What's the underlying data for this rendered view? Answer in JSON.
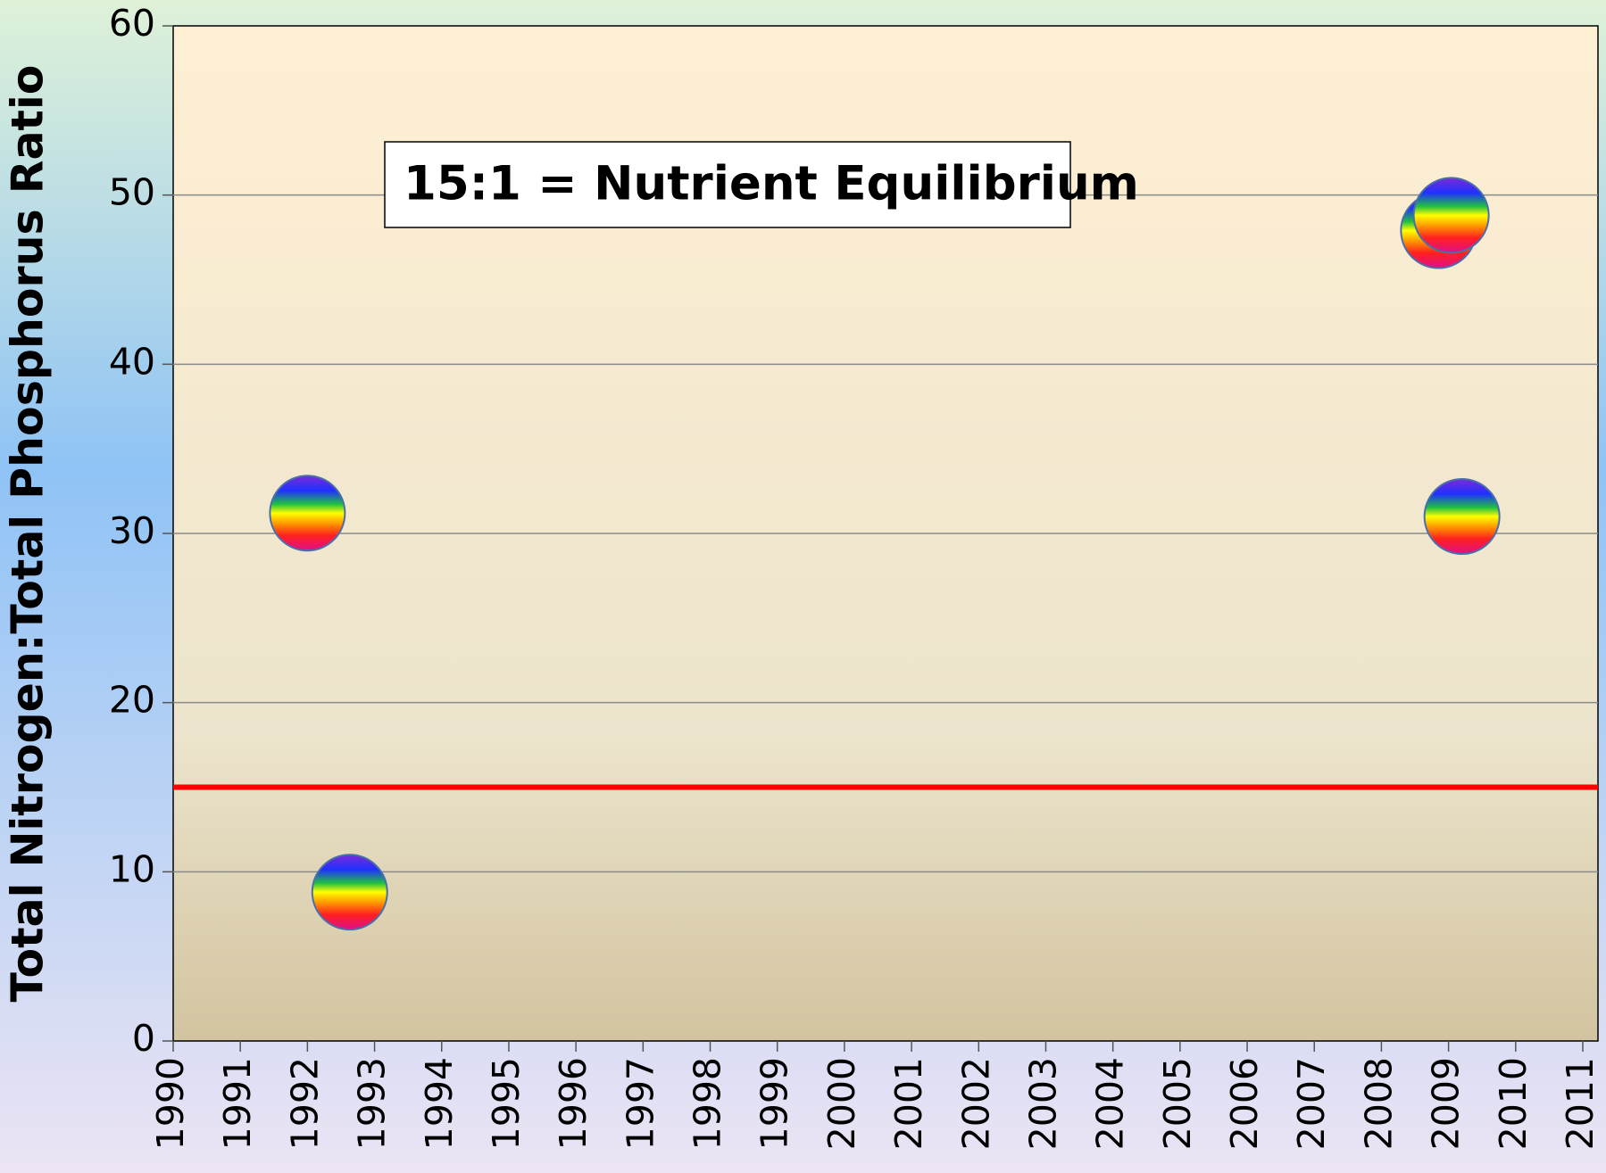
{
  "chart_data": {
    "type": "scatter",
    "y_label": "Total Nitrogen:Total Phosphorus Ratio",
    "annotation": "15:1 = Nutrient Equilibrium",
    "reference_line": {
      "value": 15,
      "color": "#ff0000"
    },
    "series": [
      {
        "x": [
          1992.0,
          1992.63,
          2008.85,
          2009.04,
          2009.2
        ],
        "values": [
          31.2,
          8.8,
          47.9,
          48.8,
          31.0
        ]
      }
    ],
    "xlim": [
      1990,
      2011
    ],
    "xticks": [
      1990,
      1991,
      1992,
      1993,
      1994,
      1995,
      1996,
      1997,
      1998,
      1999,
      2000,
      2001,
      2002,
      2003,
      2004,
      2005,
      2006,
      2007,
      2008,
      2009,
      2010,
      2011
    ],
    "ylim": [
      0,
      60
    ],
    "yticks": [
      0,
      10,
      20,
      30,
      40,
      50,
      60
    ],
    "grid": true
  }
}
